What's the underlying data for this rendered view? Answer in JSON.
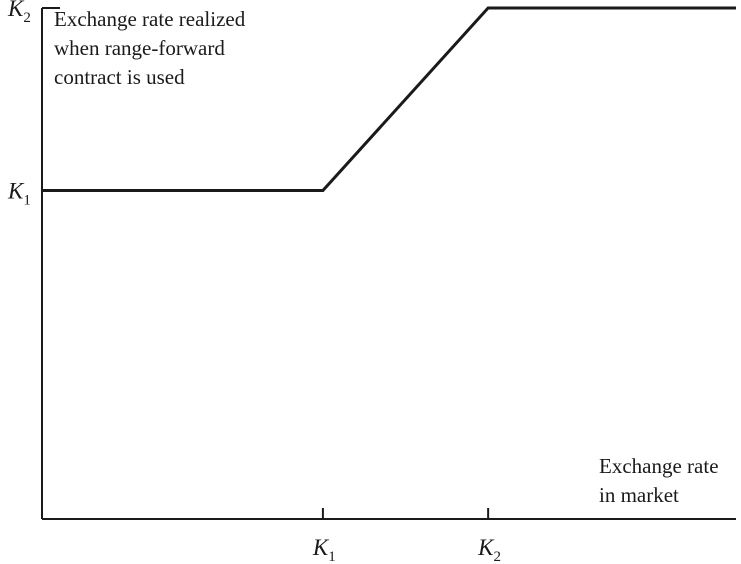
{
  "chart_data": {
    "type": "line",
    "ylabel_lines": [
      "Exchange rate realized",
      "when range-forward",
      "contract is used"
    ],
    "xlabel_lines": [
      "Exchange rate",
      "in market"
    ],
    "x_ticks": [
      {
        "main": "K",
        "sub": "1",
        "value": 1
      },
      {
        "main": "K",
        "sub": "2",
        "value": 2
      }
    ],
    "y_ticks": [
      {
        "main": "K",
        "sub": "1",
        "value": 1
      },
      {
        "main": "K",
        "sub": "2",
        "value": 2
      }
    ],
    "xlim": [
      -0.7,
      3.5
    ],
    "ylim": [
      -0.8,
      2.0
    ],
    "series": [
      {
        "x": [
          -0.7,
          1,
          2,
          3.5
        ],
        "y": [
          1,
          1,
          2,
          2
        ]
      }
    ],
    "colors": {
      "axis": "#1a1a1a",
      "line": "#1a1a1a",
      "text": "#1a1a1a"
    }
  }
}
